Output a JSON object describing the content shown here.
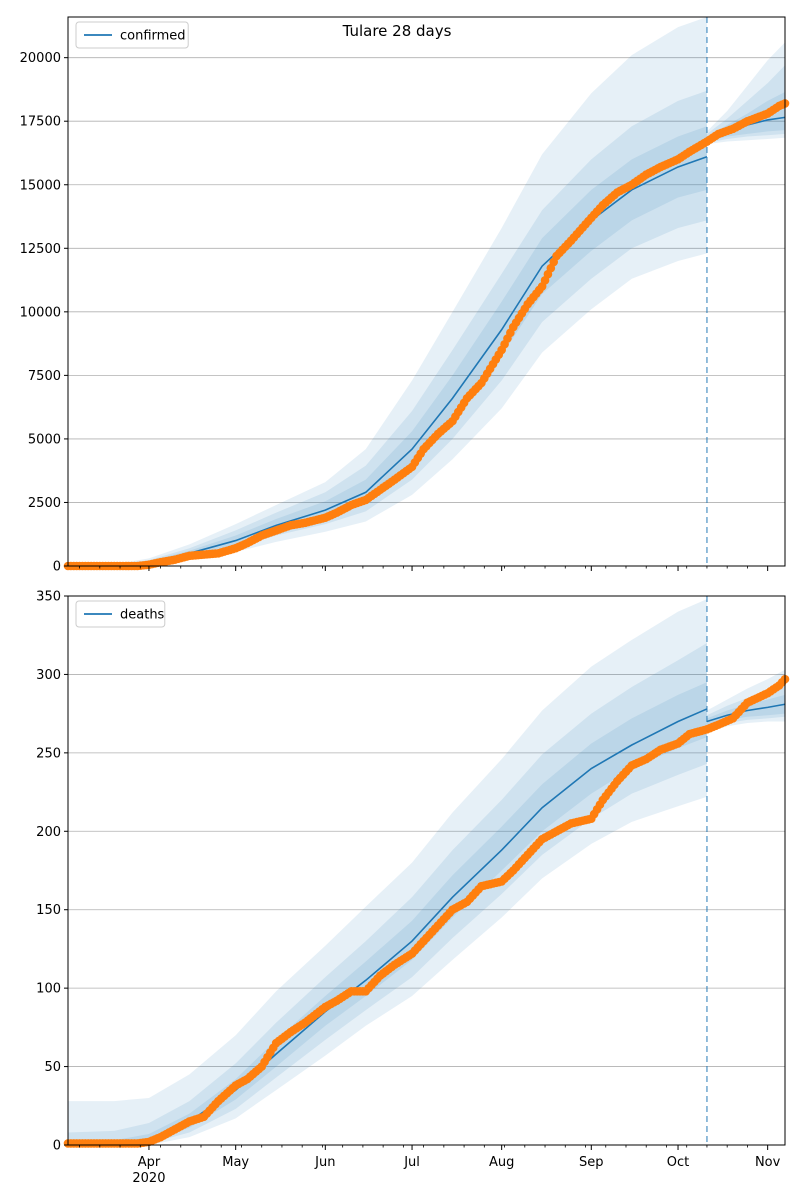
{
  "figure_title": "Tulare 28 days",
  "chart_data": [
    {
      "type": "line",
      "panel": "top",
      "title": "Tulare 28 days",
      "legend": {
        "entries": [
          "confirmed"
        ],
        "placement": "top-left"
      },
      "series_name": "confirmed",
      "ylim": [
        0,
        21600
      ],
      "yticks": [
        0,
        2500,
        5000,
        7500,
        10000,
        12500,
        15000,
        17500,
        20000
      ],
      "xlim": [
        "2020-03-04",
        "2020-11-07"
      ],
      "grid": "horizontal",
      "cutoff_date": "2020-10-11",
      "model": {
        "x": [
          "2020-03-04",
          "2020-03-20",
          "2020-04-01",
          "2020-04-15",
          "2020-05-01",
          "2020-05-15",
          "2020-06-01",
          "2020-06-15",
          "2020-07-01",
          "2020-07-15",
          "2020-08-01",
          "2020-08-15",
          "2020-09-01",
          "2020-09-15",
          "2020-10-01",
          "2020-10-11"
        ],
        "median": [
          0,
          30,
          150,
          500,
          1000,
          1600,
          2200,
          2900,
          4600,
          6600,
          9300,
          11800,
          13600,
          14800,
          15700,
          16100
        ],
        "band1_low": [
          0,
          20,
          120,
          420,
          850,
          1400,
          1900,
          2500,
          4000,
          5800,
          8300,
          10700,
          12400,
          13600,
          14500,
          14800
        ],
        "band1_high": [
          0,
          40,
          190,
          600,
          1200,
          1850,
          2550,
          3400,
          5300,
          7500,
          10400,
          12900,
          14800,
          16000,
          16900,
          17300
        ],
        "band2_low": [
          0,
          10,
          90,
          340,
          700,
          1200,
          1650,
          2150,
          3400,
          5000,
          7300,
          9600,
          11300,
          12500,
          13300,
          13600
        ],
        "band2_high": [
          0,
          50,
          230,
          700,
          1400,
          2100,
          2900,
          3950,
          6100,
          8500,
          11500,
          14000,
          16000,
          17300,
          18300,
          18700
        ],
        "band3_low": [
          0,
          5,
          60,
          260,
          550,
          950,
          1350,
          1750,
          2800,
          4200,
          6200,
          8400,
          10100,
          11300,
          12000,
          12300
        ],
        "band3_high": [
          0,
          70,
          300,
          850,
          1650,
          2400,
          3300,
          4600,
          7300,
          10000,
          13300,
          16200,
          18600,
          20100,
          21200,
          21600
        ]
      },
      "forecast": {
        "x": [
          "2020-10-11",
          "2020-10-18",
          "2020-10-25",
          "2020-11-01",
          "2020-11-07"
        ],
        "median": [
          16800,
          17100,
          17350,
          17550,
          17650
        ],
        "band1_low": [
          16700,
          16900,
          17000,
          17100,
          17150
        ],
        "band1_high": [
          16900,
          17350,
          17800,
          18300,
          18650
        ],
        "band2_low": [
          16650,
          16800,
          16900,
          16950,
          17000
        ],
        "band2_high": [
          17000,
          17600,
          18300,
          19000,
          19700
        ],
        "band3_low": [
          16600,
          16700,
          16750,
          16800,
          16850
        ],
        "band3_high": [
          17100,
          17900,
          18900,
          19900,
          20600
        ]
      },
      "observed": {
        "x": [
          "2020-03-04",
          "2020-03-12",
          "2020-03-20",
          "2020-03-28",
          "2020-04-01",
          "2020-04-05",
          "2020-04-10",
          "2020-04-15",
          "2020-04-20",
          "2020-04-25",
          "2020-05-01",
          "2020-05-05",
          "2020-05-10",
          "2020-05-15",
          "2020-05-20",
          "2020-05-25",
          "2020-06-01",
          "2020-06-05",
          "2020-06-10",
          "2020-06-15",
          "2020-06-20",
          "2020-06-25",
          "2020-07-01",
          "2020-07-05",
          "2020-07-10",
          "2020-07-15",
          "2020-07-20",
          "2020-07-25",
          "2020-08-01",
          "2020-08-05",
          "2020-08-10",
          "2020-08-15",
          "2020-08-20",
          "2020-08-25",
          "2020-09-01",
          "2020-09-05",
          "2020-09-10",
          "2020-09-15",
          "2020-09-20",
          "2020-09-25",
          "2020-10-01",
          "2020-10-05",
          "2020-10-11",
          "2020-10-15",
          "2020-10-20",
          "2020-10-25",
          "2020-11-01",
          "2020-11-05",
          "2020-11-07"
        ],
        "y": [
          0,
          0,
          0,
          0,
          50,
          150,
          250,
          400,
          450,
          500,
          700,
          900,
          1200,
          1400,
          1600,
          1700,
          1900,
          2100,
          2400,
          2600,
          3000,
          3400,
          3900,
          4600,
          5200,
          5700,
          6600,
          7200,
          8500,
          9400,
          10300,
          11000,
          12200,
          12800,
          13700,
          14200,
          14700,
          15000,
          15400,
          15700,
          16000,
          16300,
          16700,
          17000,
          17200,
          17500,
          17800,
          18100,
          18200
        ]
      }
    },
    {
      "type": "line",
      "panel": "bottom",
      "legend": {
        "entries": [
          "deaths"
        ],
        "placement": "top-left"
      },
      "series_name": "deaths",
      "ylim": [
        0,
        350
      ],
      "yticks": [
        0,
        50,
        100,
        150,
        200,
        250,
        300,
        350
      ],
      "xlim": [
        "2020-03-04",
        "2020-11-07"
      ],
      "xticks": [
        "Apr",
        "May",
        "Jun",
        "Jul",
        "Aug",
        "Sep",
        "Oct",
        "Nov"
      ],
      "xtick_year": "2020",
      "grid": "horizontal",
      "cutoff_date": "2020-10-11",
      "model": {
        "x": [
          "2020-03-04",
          "2020-03-20",
          "2020-04-01",
          "2020-04-15",
          "2020-05-01",
          "2020-05-15",
          "2020-06-01",
          "2020-06-15",
          "2020-07-01",
          "2020-07-15",
          "2020-08-01",
          "2020-08-15",
          "2020-09-01",
          "2020-09-15",
          "2020-10-01",
          "2020-10-11"
        ],
        "median": [
          1,
          1,
          3,
          15,
          35,
          58,
          85,
          105,
          130,
          158,
          188,
          215,
          240,
          255,
          270,
          278
        ],
        "band1_low": [
          0,
          0,
          2,
          11,
          29,
          50,
          76,
          95,
          118,
          145,
          175,
          200,
          224,
          240,
          253,
          260
        ],
        "band1_high": [
          3,
          3,
          7,
          20,
          42,
          67,
          95,
          117,
          143,
          172,
          203,
          230,
          256,
          272,
          287,
          295
        ],
        "band2_low": [
          0,
          0,
          1,
          8,
          23,
          43,
          67,
          86,
          107,
          132,
          160,
          185,
          208,
          224,
          236,
          243
        ],
        "band2_high": [
          8,
          9,
          14,
          28,
          52,
          78,
          107,
          130,
          158,
          188,
          220,
          249,
          275,
          292,
          309,
          320
        ],
        "band3_low": [
          0,
          0,
          0,
          5,
          17,
          35,
          57,
          76,
          95,
          118,
          145,
          170,
          192,
          206,
          216,
          222
        ],
        "band3_high": [
          28,
          28,
          30,
          45,
          70,
          98,
          127,
          152,
          180,
          212,
          246,
          277,
          305,
          322,
          340,
          348
        ]
      },
      "forecast": {
        "x": [
          "2020-10-11",
          "2020-10-18",
          "2020-10-25",
          "2020-11-01",
          "2020-11-07"
        ],
        "median": [
          270,
          274,
          277,
          279,
          281
        ],
        "band1_low": [
          268,
          271,
          273,
          274,
          275
        ],
        "band1_high": [
          272,
          277,
          281,
          284,
          287
        ],
        "band2_low": [
          266,
          269,
          271,
          272,
          273
        ],
        "band2_high": [
          274,
          280,
          285,
          290,
          294
        ],
        "band3_low": [
          264,
          267,
          269,
          270,
          270
        ],
        "band3_high": [
          277,
          284,
          291,
          297,
          303
        ]
      },
      "observed": {
        "x": [
          "2020-03-04",
          "2020-03-15",
          "2020-03-28",
          "2020-04-01",
          "2020-04-05",
          "2020-04-10",
          "2020-04-15",
          "2020-04-20",
          "2020-04-25",
          "2020-05-01",
          "2020-05-05",
          "2020-05-10",
          "2020-05-15",
          "2020-05-20",
          "2020-05-25",
          "2020-06-01",
          "2020-06-05",
          "2020-06-10",
          "2020-06-15",
          "2020-06-20",
          "2020-06-25",
          "2020-07-01",
          "2020-07-05",
          "2020-07-10",
          "2020-07-15",
          "2020-07-20",
          "2020-07-25",
          "2020-08-01",
          "2020-08-05",
          "2020-08-10",
          "2020-08-15",
          "2020-08-20",
          "2020-08-25",
          "2020-09-01",
          "2020-09-05",
          "2020-09-10",
          "2020-09-15",
          "2020-09-20",
          "2020-09-25",
          "2020-10-01",
          "2020-10-05",
          "2020-10-11",
          "2020-10-15",
          "2020-10-20",
          "2020-10-25",
          "2020-11-01",
          "2020-11-05",
          "2020-11-07"
        ],
        "y": [
          1,
          1,
          1,
          2,
          5,
          10,
          15,
          18,
          28,
          38,
          42,
          50,
          65,
          72,
          78,
          88,
          92,
          98,
          98,
          108,
          115,
          122,
          130,
          140,
          150,
          155,
          165,
          168,
          175,
          185,
          195,
          200,
          205,
          208,
          220,
          232,
          242,
          246,
          252,
          256,
          262,
          265,
          268,
          272,
          282,
          288,
          293,
          297
        ]
      }
    }
  ]
}
